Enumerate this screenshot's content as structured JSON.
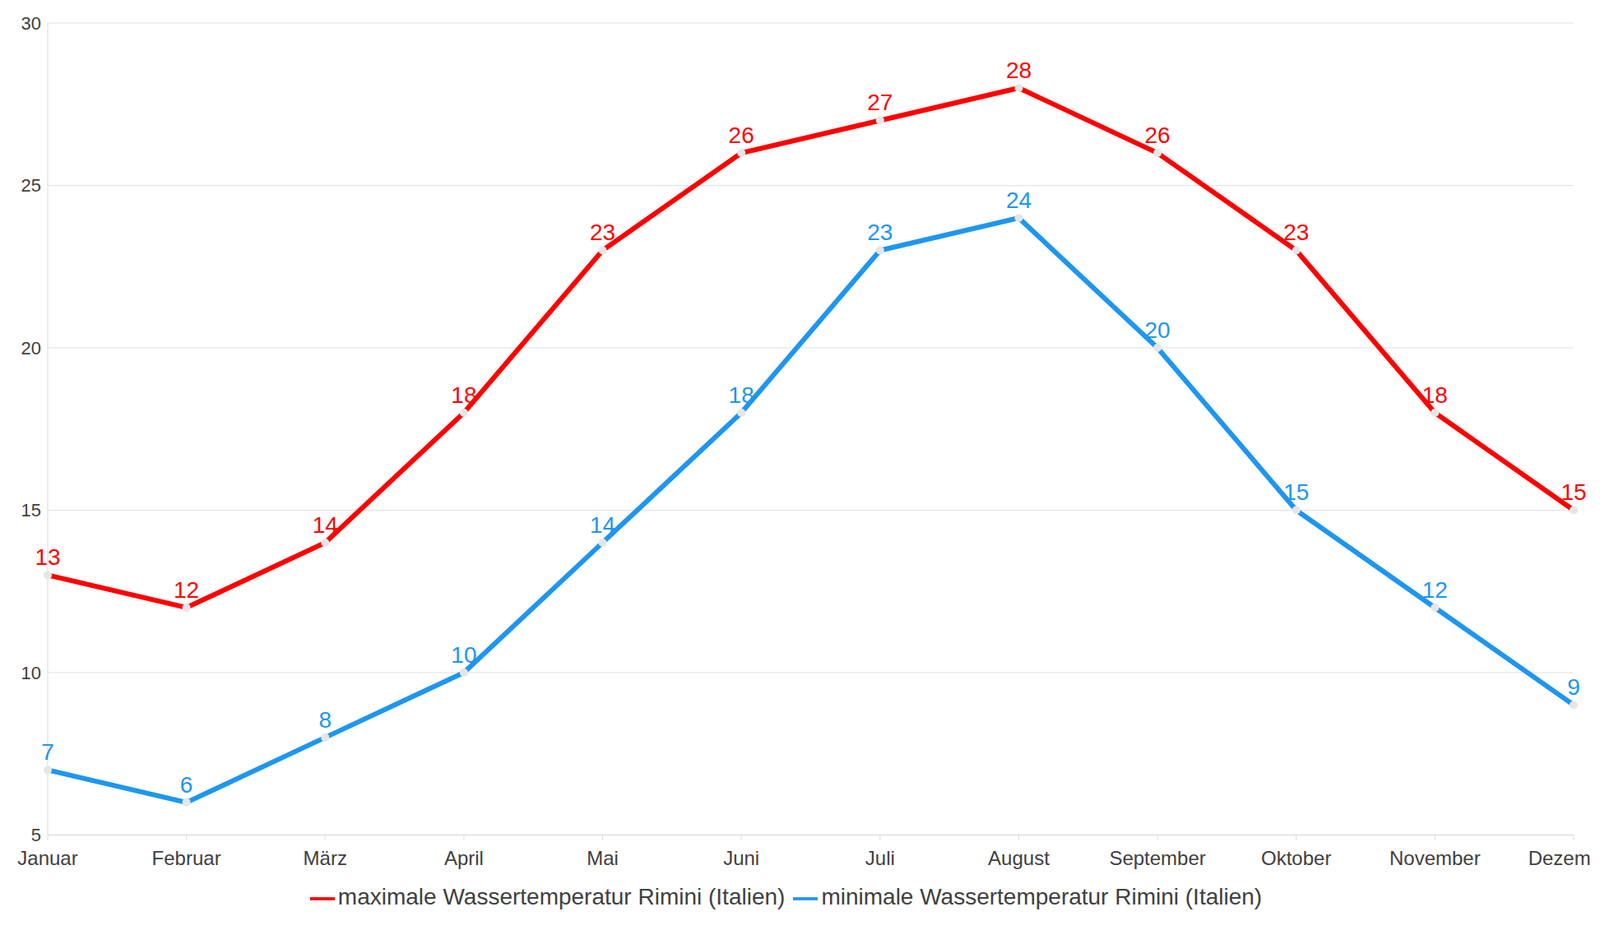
{
  "chart_data": {
    "type": "line",
    "categories": [
      "Januar",
      "Februar",
      "März",
      "April",
      "Mai",
      "Juni",
      "Juli",
      "August",
      "September",
      "Oktober",
      "November",
      "Dezember"
    ],
    "series": [
      {
        "name": "minimale Wassertemperatur Rimini (Italien)",
        "color": "#1e96f0",
        "values": [
          7,
          6,
          8,
          10,
          14,
          18,
          23,
          24,
          20,
          15,
          12,
          9
        ],
        "marker": "circle"
      },
      {
        "name": "maximale Wassertemperatur Rimini (Italien)",
        "color": "#ff0000",
        "values": [
          13,
          12,
          14,
          18,
          23,
          26,
          27,
          28,
          26,
          23,
          18,
          15
        ],
        "marker": "circle"
      }
    ],
    "ylim": [
      5,
      30
    ],
    "yticks": [
      5,
      10,
      15,
      20,
      25,
      30
    ],
    "grid": true,
    "legend": "bottom",
    "data_labels": true
  }
}
